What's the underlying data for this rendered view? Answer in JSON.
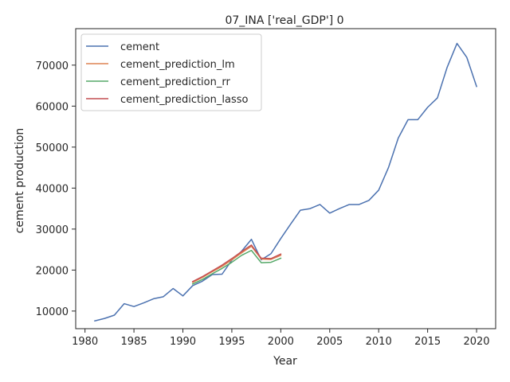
{
  "chart_data": {
    "type": "line",
    "title": "07_INA ['real_GDP'] 0",
    "xlabel": "Year",
    "ylabel": "cement production",
    "xlim": [
      1979.05,
      2021.95
    ],
    "ylim": [
      5700,
      78900
    ],
    "xticks": [
      1980,
      1985,
      1990,
      1995,
      2000,
      2005,
      2010,
      2015,
      2020
    ],
    "yticks": [
      10000,
      20000,
      30000,
      40000,
      50000,
      60000,
      70000
    ],
    "xtick_labels": [
      "1980",
      "1985",
      "1990",
      "1995",
      "2000",
      "2005",
      "2010",
      "2015",
      "2020"
    ],
    "ytick_labels": [
      "10000",
      "20000",
      "30000",
      "40000",
      "50000",
      "60000",
      "70000"
    ],
    "grid": false,
    "legend_position": "upper left",
    "series": [
      {
        "name": "cement",
        "color": "#4c72b0",
        "x": [
          1981,
          1982,
          1983,
          1984,
          1985,
          1986,
          1987,
          1988,
          1989,
          1990,
          1991,
          1992,
          1993,
          1994,
          1995,
          1996,
          1997,
          1998,
          1999,
          2000,
          2001,
          2002,
          2003,
          2004,
          2005,
          2006,
          2007,
          2008,
          2009,
          2010,
          2011,
          2012,
          2013,
          2014,
          2015,
          2016,
          2017,
          2018,
          2019,
          2020
        ],
        "y": [
          7600,
          8200,
          9000,
          11800,
          11100,
          12000,
          13000,
          13500,
          15500,
          13700,
          16200,
          17300,
          18900,
          19000,
          22400,
          24600,
          27500,
          22500,
          24000,
          27700,
          31200,
          34600,
          35000,
          36000,
          33900,
          35000,
          36000,
          36000,
          37000,
          39500,
          45000,
          52200,
          56700,
          56700,
          59700,
          62000,
          69500,
          75300,
          71900,
          64800
        ]
      },
      {
        "name": "cement_prediction_lm",
        "color": "#dd8452",
        "x": [
          1991,
          1992,
          1993,
          1994,
          1995,
          1996,
          1997,
          1998,
          1999,
          2000
        ],
        "y": [
          17000,
          18200,
          19600,
          20900,
          22500,
          24200,
          25800,
          22700,
          22600,
          23600
        ]
      },
      {
        "name": "cement_prediction_rr",
        "color": "#55a868",
        "x": [
          1991,
          1992,
          1993,
          1994,
          1995,
          1996,
          1997,
          1998,
          1999,
          2000
        ],
        "y": [
          16600,
          17700,
          19100,
          20400,
          21900,
          23600,
          24800,
          21800,
          21900,
          22900
        ]
      },
      {
        "name": "cement_prediction_lasso",
        "color": "#c44e52",
        "x": [
          1991,
          1992,
          1993,
          1994,
          1995,
          1996,
          1997,
          1998,
          1999,
          2000
        ],
        "y": [
          17200,
          18400,
          19800,
          21200,
          22800,
          24500,
          26100,
          22900,
          22800,
          23900
        ]
      }
    ]
  }
}
